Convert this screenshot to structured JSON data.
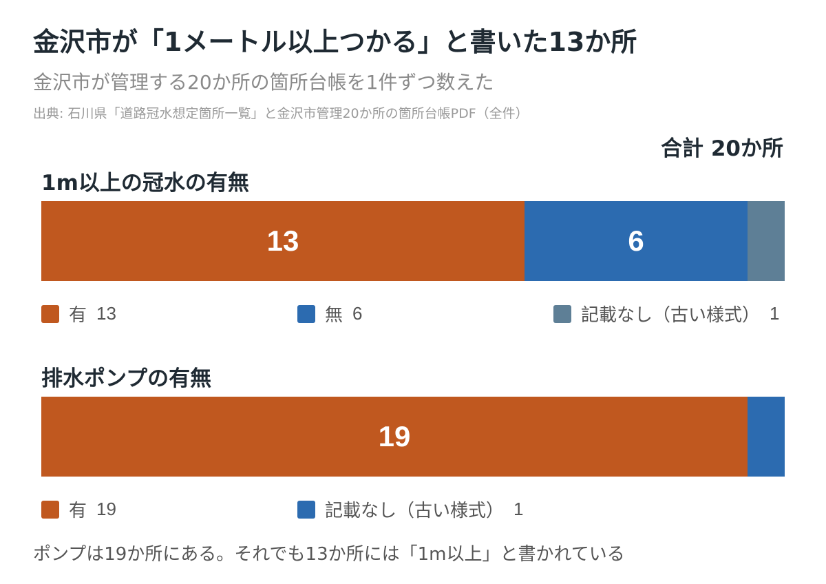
{
  "title": "金沢市が「1メートル以上つかる」と書いた13か所",
  "subtitle": "金沢市が管理する20か所の箇所台帳を1件ずつ数えた",
  "source": "出典: 石川県「道路冠水想定箇所一覧」と金沢市管理20か所の箇所台帳PDF（全件）",
  "total_label": "合計 20か所",
  "footnote": "ポンプは19か所にある。それでも13か所には「1m以上」と書かれている",
  "colors": {
    "orange": "#c0581f",
    "blue": "#2c6bb0",
    "gray": "#5e7f96"
  },
  "chart_data": [
    {
      "type": "bar",
      "stacked": true,
      "orientation": "horizontal",
      "title": "1m以上の冠水の有無",
      "total": 20,
      "series": [
        {
          "name": "有",
          "value": 13,
          "color": "#c0581f"
        },
        {
          "name": "無",
          "value": 6,
          "color": "#2c6bb0"
        },
        {
          "name": "記載なし（古い様式）",
          "value": 1,
          "color": "#5e7f96"
        }
      ]
    },
    {
      "type": "bar",
      "stacked": true,
      "orientation": "horizontal",
      "title": "排水ポンプの有無",
      "total": 20,
      "series": [
        {
          "name": "有",
          "value": 19,
          "color": "#c0581f"
        },
        {
          "name": "記載なし（古い様式）",
          "value": 1,
          "color": "#2c6bb0"
        }
      ]
    }
  ]
}
